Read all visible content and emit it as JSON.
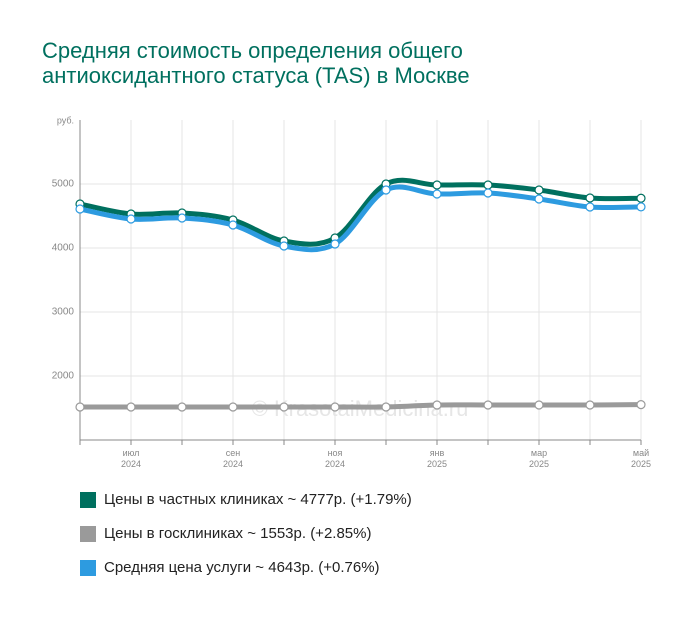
{
  "chart_data": {
    "type": "line",
    "title": [
      "Средняя стоимость определения общего",
      "антиоксидантного статуса (TAS) в Москве"
    ],
    "ylabel": "руб.",
    "watermark": "© KrasotaiMedicina.ru",
    "categories": [
      null,
      "июл 2024",
      null,
      "сен 2024",
      null,
      "ноя 2024",
      null,
      "янв 2025",
      null,
      "мар 2025",
      null,
      "май 2025"
    ],
    "series": [
      {
        "name": "Цены в частных клиниках ~ 4777р. (+1.79%)",
        "color": "#00705f",
        "values": [
          4687,
          4531,
          4547,
          4437,
          4109,
          4156,
          5000,
          4984,
          4984,
          4906,
          4781,
          4777
        ]
      },
      {
        "name": "Цены в госклиниках ~ 1553р. (+2.85%)",
        "color": "#9a9a9a",
        "values": [
          1516,
          1516,
          1516,
          1516,
          1516,
          1516,
          1516,
          1547,
          1547,
          1547,
          1547,
          1553
        ]
      },
      {
        "name": "Средняя цена услуги ~ 4643р. (+0.76%)",
        "color": "#2d9be0",
        "values": [
          4609,
          4453,
          4469,
          4359,
          4031,
          4063,
          4906,
          4844,
          4859,
          4766,
          4641,
          4643
        ]
      }
    ],
    "ylim": [
      1000,
      6000
    ],
    "yticks": [
      2000,
      3000,
      4000,
      5000
    ],
    "grid": true
  }
}
